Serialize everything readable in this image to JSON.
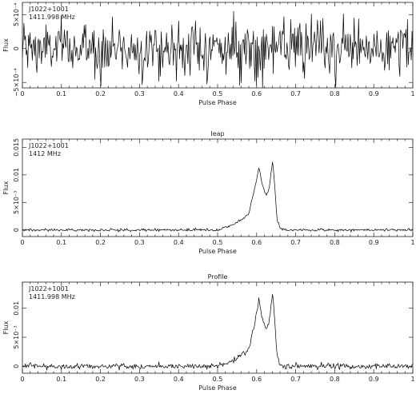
{
  "chart_data": [
    {
      "type": "line",
      "title": "",
      "annotations": [
        "J1022+1001",
        "1411.998 MHz"
      ],
      "xlabel": "Pulse Phase",
      "ylabel": "Flux",
      "xlim": [
        0,
        1
      ],
      "ylim": [
        -0.00058,
        0.00068
      ],
      "xticks": [
        0,
        0.1,
        0.2,
        0.3,
        0.4,
        0.5,
        0.6,
        0.7,
        0.8,
        0.9,
        1
      ],
      "xtick_labels": [
        "0",
        "0.1",
        "0.2",
        "0.3",
        "0.4",
        "0.5",
        "0.6",
        "0.7",
        "0.8",
        "0.9",
        "1"
      ],
      "yticks": [
        -0.0005,
        0,
        0.0005
      ],
      "ytick_labels": [
        "−5×10⁻⁴",
        "0",
        "5×10⁻⁴"
      ],
      "series": [
        {
          "noise_amplitude": 0.0002,
          "baseline": 0,
          "pulse": []
        }
      ]
    },
    {
      "type": "line",
      "title": "Ieap",
      "annotations": [
        "J1022+1001",
        "1412 MHz"
      ],
      "xlabel": "Pulse Phase",
      "ylabel": "Flux",
      "xlim": [
        0,
        1
      ],
      "ylim": [
        -0.0012,
        0.0165
      ],
      "xticks": [
        0,
        0.1,
        0.2,
        0.3,
        0.4,
        0.5,
        0.6,
        0.7,
        0.8,
        0.9,
        1
      ],
      "xtick_labels": [
        "0",
        "0.1",
        "0.2",
        "0.3",
        "0.4",
        "0.5",
        "0.6",
        "0.7",
        "0.8",
        "0.9",
        "1"
      ],
      "yticks": [
        0,
        0.005,
        0.01,
        0.015
      ],
      "ytick_labels": [
        "0",
        "5×10⁻³",
        "0.01",
        "0.015"
      ],
      "series": [
        {
          "noise_amplitude": 0.00012,
          "baseline": 0,
          "pulse": [
            [
              0.5,
              0
            ],
            [
              0.52,
              0.0004
            ],
            [
              0.54,
              0.001
            ],
            [
              0.56,
              0.0018
            ],
            [
              0.58,
              0.003
            ],
            [
              0.595,
              0.0075
            ],
            [
              0.606,
              0.0114
            ],
            [
              0.615,
              0.008
            ],
            [
              0.625,
              0.0063
            ],
            [
              0.632,
              0.0075
            ],
            [
              0.641,
              0.0126
            ],
            [
              0.646,
              0.0085
            ],
            [
              0.652,
              0.002
            ],
            [
              0.66,
              0.0003
            ],
            [
              0.67,
              0
            ]
          ]
        }
      ]
    },
    {
      "type": "line",
      "title": "Profile",
      "annotations": [
        "J1022+1001",
        "1411.998 MHz"
      ],
      "xlabel": "Pulse Phase",
      "ylabel": "Flux",
      "xlim": [
        0,
        1
      ],
      "ylim": [
        -0.0012,
        0.0145
      ],
      "xticks": [
        0,
        0.1,
        0.2,
        0.3,
        0.4,
        0.5,
        0.6,
        0.7,
        0.8,
        0.9,
        1
      ],
      "xtick_labels": [
        "0",
        "0.1",
        "0.2",
        "0.3",
        "0.4",
        "0.5",
        "0.6",
        "0.7",
        "0.8",
        "0.9",
        "1"
      ],
      "yticks": [
        0,
        0.005,
        0.01
      ],
      "ytick_labels": [
        "0",
        "5×10⁻³",
        "0.01"
      ],
      "series": [
        {
          "noise_amplitude": 0.00025,
          "baseline": 0,
          "pulse": [
            [
              0.5,
              0
            ],
            [
              0.52,
              0.0004
            ],
            [
              0.54,
              0.001
            ],
            [
              0.56,
              0.0018
            ],
            [
              0.58,
              0.003
            ],
            [
              0.595,
              0.0075
            ],
            [
              0.606,
              0.0114
            ],
            [
              0.615,
              0.008
            ],
            [
              0.625,
              0.0063
            ],
            [
              0.632,
              0.0075
            ],
            [
              0.641,
              0.0126
            ],
            [
              0.646,
              0.0085
            ],
            [
              0.652,
              0.002
            ],
            [
              0.66,
              0.0003
            ],
            [
              0.67,
              0
            ]
          ]
        }
      ]
    }
  ]
}
